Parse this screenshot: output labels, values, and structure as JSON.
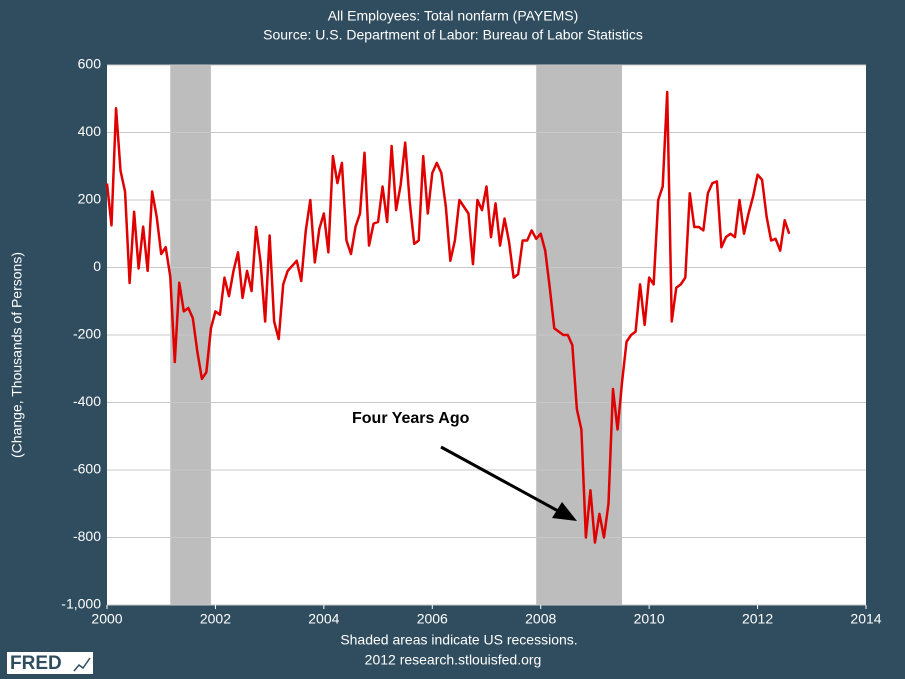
{
  "chart_data": {
    "type": "line",
    "title": "All Employees: Total nonfarm (PAYEMS)",
    "subtitle": "Source: U.S. Department of Labor: Bureau of Labor Statistics",
    "ylabel": "(Change, Thousands of Persons)",
    "note": "Shaded areas indicate US recessions.",
    "source": "2012 research.stlouisfed.org",
    "logo": "FRED",
    "annotation": "Four Years Ago",
    "color": "#e00000",
    "recession_color": "#bdbdbd",
    "grid": true,
    "xlim": [
      2000,
      2014
    ],
    "xticks": [
      2000,
      2002,
      2004,
      2006,
      2008,
      2010,
      2012,
      2014
    ],
    "ylim": [
      -1000,
      600
    ],
    "yticks": [
      {
        "value": -1000,
        "label": "-1,000"
      },
      -800,
      -600,
      -400,
      -200,
      0,
      200,
      400,
      600
    ],
    "recessions": [
      [
        2001.167,
        2001.917
      ],
      [
        2007.917,
        2009.5
      ]
    ],
    "x": [
      2000,
      2000.083,
      2000.167,
      2000.25,
      2000.333,
      2000.417,
      2000.5,
      2000.583,
      2000.667,
      2000.75,
      2000.833,
      2000.917,
      2001,
      2001.083,
      2001.167,
      2001.25,
      2001.333,
      2001.417,
      2001.5,
      2001.583,
      2001.667,
      2001.75,
      2001.833,
      2001.917,
      2002,
      2002.083,
      2002.167,
      2002.25,
      2002.333,
      2002.417,
      2002.5,
      2002.583,
      2002.667,
      2002.75,
      2002.833,
      2002.917,
      2003,
      2003.083,
      2003.167,
      2003.25,
      2003.333,
      2003.417,
      2003.5,
      2003.583,
      2003.667,
      2003.75,
      2003.833,
      2003.917,
      2004,
      2004.083,
      2004.167,
      2004.25,
      2004.333,
      2004.417,
      2004.5,
      2004.583,
      2004.667,
      2004.75,
      2004.833,
      2004.917,
      2005,
      2005.083,
      2005.167,
      2005.25,
      2005.333,
      2005.417,
      2005.5,
      2005.583,
      2005.667,
      2005.75,
      2005.833,
      2005.917,
      2006,
      2006.083,
      2006.167,
      2006.25,
      2006.333,
      2006.417,
      2006.5,
      2006.583,
      2006.667,
      2006.75,
      2006.833,
      2006.917,
      2007,
      2007.083,
      2007.167,
      2007.25,
      2007.333,
      2007.417,
      2007.5,
      2007.583,
      2007.667,
      2007.75,
      2007.833,
      2007.917,
      2008,
      2008.083,
      2008.167,
      2008.25,
      2008.333,
      2008.417,
      2008.5,
      2008.583,
      2008.667,
      2008.75,
      2008.833,
      2008.917,
      2009,
      2009.083,
      2009.167,
      2009.25,
      2009.333,
      2009.417,
      2009.5,
      2009.583,
      2009.667,
      2009.75,
      2009.833,
      2009.917,
      2010,
      2010.083,
      2010.167,
      2010.25,
      2010.333,
      2010.417,
      2010.5,
      2010.583,
      2010.667,
      2010.75,
      2010.833,
      2010.917,
      2011,
      2011.083,
      2011.167,
      2011.25,
      2011.333,
      2011.417,
      2011.5,
      2011.583,
      2011.667,
      2011.75,
      2011.833,
      2011.917,
      2012,
      2012.083,
      2012.167,
      2012.25,
      2012.333,
      2012.417,
      2012.5,
      2012.583
    ],
    "values": [
      249,
      125,
      472,
      286,
      225,
      -46,
      165,
      -3,
      121,
      -10,
      225,
      150,
      40,
      60,
      -27,
      -280,
      -45,
      -130,
      -120,
      -150,
      -250,
      -330,
      -310,
      -180,
      -130,
      -140,
      -30,
      -85,
      -10,
      45,
      -90,
      -10,
      -70,
      120,
      15,
      -160,
      95,
      -160,
      -212,
      -50,
      -10,
      5,
      20,
      -40,
      110,
      200,
      15,
      115,
      160,
      45,
      330,
      250,
      310,
      80,
      40,
      120,
      160,
      340,
      65,
      130,
      135,
      240,
      135,
      360,
      170,
      245,
      370,
      195,
      70,
      80,
      330,
      160,
      280,
      310,
      280,
      180,
      20,
      80,
      200,
      180,
      160,
      10,
      200,
      170,
      240,
      90,
      190,
      65,
      145,
      75,
      -30,
      -20,
      80,
      80,
      110,
      85,
      100,
      50,
      -60,
      -180,
      -190,
      -200,
      -200,
      -230,
      -420,
      -480,
      -800,
      -660,
      -815,
      -730,
      -800,
      -700,
      -360,
      -480,
      -340,
      -220,
      -200,
      -190,
      -50,
      -170,
      -30,
      -50,
      200,
      240,
      520,
      -160,
      -60,
      -50,
      -30,
      220,
      120,
      120,
      110,
      220,
      250,
      255,
      60,
      90,
      100,
      90,
      200,
      100,
      160,
      210,
      275,
      260,
      150,
      80,
      85,
      50,
      140,
      100
    ]
  }
}
